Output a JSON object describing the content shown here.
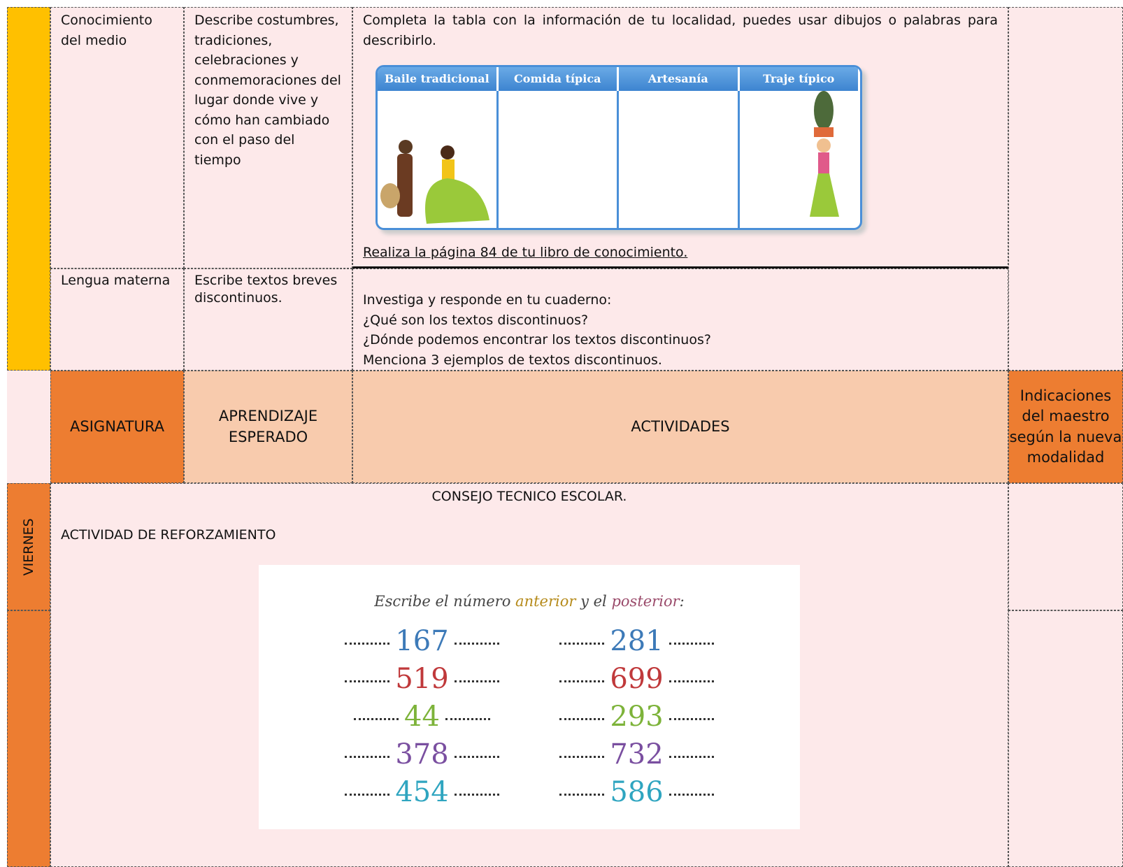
{
  "rows": [
    {
      "subject": "Conocimiento del medio",
      "learning": "Describe costumbres, tradiciones, celebraciones y conmemoraciones del lugar donde vive y cómo han cambiado con el paso del tiempo",
      "activity": {
        "text": "Completa la tabla con la información de tu localidad, puedes usar dibujos o palabras para describirlo.",
        "table_headers": [
          "Baile tradicional",
          "Comida típica",
          "Artesanía",
          "Traje típico"
        ],
        "link": "Realiza la página 84 de tu libro de conocimiento."
      }
    },
    {
      "subject": "Lengua materna",
      "learning": "Escribe textos breves discontinuos.",
      "activity": {
        "lines": [
          "Investiga y responde en tu cuaderno:",
          "¿Qué son los textos discontinuos?",
          "¿Dónde podemos encontrar los textos discontinuos?",
          "Menciona 3 ejemplos de textos discontinuos."
        ]
      }
    }
  ],
  "header": {
    "subject": "ASIGNATURA",
    "learning": "APRENDIZAJE ESPERADO",
    "activities": "ACTIVIDADES",
    "notes": "Indicaciones del maestro según la nueva modalidad"
  },
  "friday": {
    "day": "VIERNES",
    "title": "CONSEJO TECNICO ESCOLAR.",
    "subtitle": "ACTIVIDAD DE REFORZAMIENTO",
    "exercise": {
      "instruction": [
        "Escribe el número ",
        "anterior",
        " y el ",
        "posterior",
        ":"
      ],
      "numbers": [
        [
          "167",
          "281"
        ],
        [
          "519",
          "699"
        ],
        [
          "44",
          "293"
        ],
        [
          "378",
          "732"
        ],
        [
          "454",
          "586"
        ]
      ]
    }
  }
}
